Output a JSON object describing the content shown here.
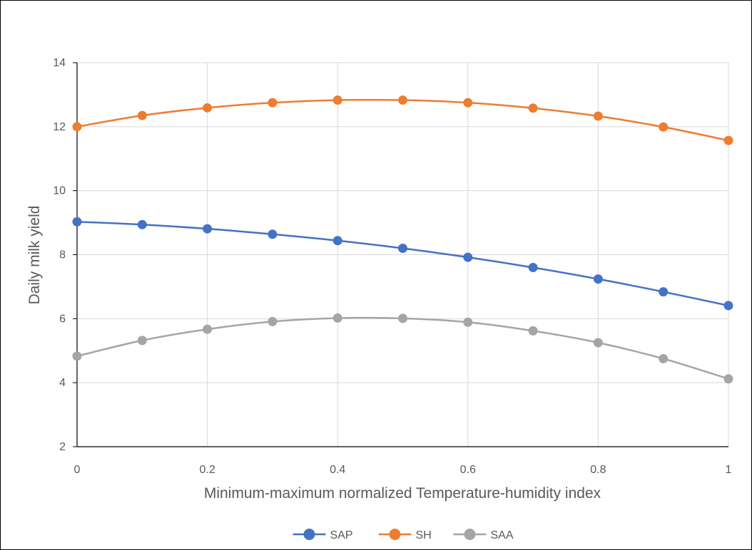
{
  "chart_data": {
    "type": "line",
    "title": "",
    "xlabel": "Minimum-maximum normalized Temperature-humidity index",
    "ylabel": "Daily milk yield",
    "x": [
      0,
      0.1,
      0.2,
      0.3,
      0.4,
      0.5,
      0.6,
      0.7,
      0.8,
      0.9,
      1
    ],
    "xlim": [
      0,
      1
    ],
    "ylim": [
      2,
      14
    ],
    "xticks": [
      0,
      0.2,
      0.4,
      0.6,
      0.8,
      1
    ],
    "xtick_labels": [
      "0",
      "0.2",
      "0.4",
      "0.6",
      "0.8",
      "1"
    ],
    "yticks": [
      2,
      4,
      6,
      8,
      10,
      12,
      14
    ],
    "ytick_labels": [
      "2",
      "4",
      "6",
      "8",
      "10",
      "12",
      "14"
    ],
    "grid": true,
    "smooth": true,
    "legend_position": "bottom",
    "series": [
      {
        "name": "SAP",
        "color": "#4472C4",
        "values": [
          9.03,
          8.94,
          8.81,
          8.64,
          8.44,
          8.2,
          7.92,
          7.6,
          7.24,
          6.84,
          6.41
        ]
      },
      {
        "name": "SH",
        "color": "#ED7D31",
        "values": [
          12.0,
          12.35,
          12.59,
          12.75,
          12.83,
          12.83,
          12.75,
          12.58,
          12.33,
          11.99,
          11.57
        ]
      },
      {
        "name": "SAA",
        "color": "#A5A5A5",
        "values": [
          4.83,
          5.32,
          5.67,
          5.91,
          6.02,
          6.01,
          5.89,
          5.62,
          5.25,
          4.75,
          4.12
        ]
      }
    ]
  }
}
